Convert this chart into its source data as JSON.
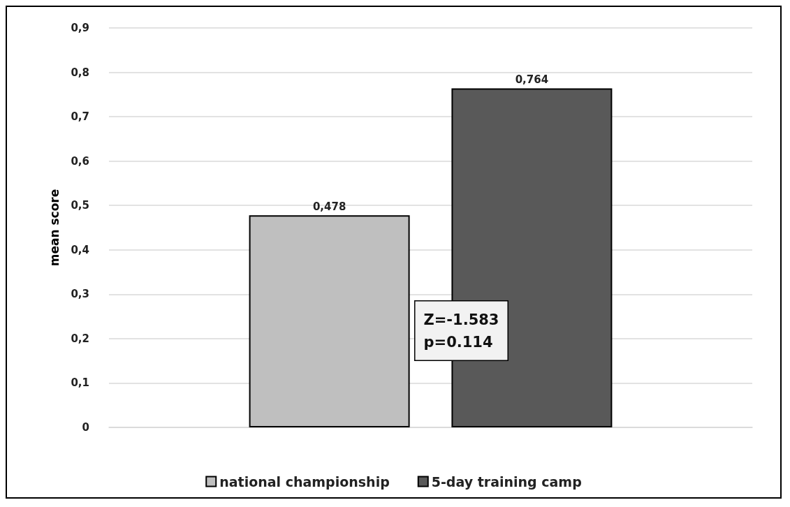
{
  "chart_data": {
    "type": "bar",
    "ylabel": "mean score",
    "categories": [
      null
    ],
    "series": [
      {
        "name": "national championship",
        "color": "#bfbfbf",
        "values": [
          0.478
        ],
        "value_labels": [
          "0,478"
        ]
      },
      {
        "name": "5-day training camp",
        "color": "#595959",
        "values": [
          0.764
        ],
        "value_labels": [
          "0,764"
        ]
      }
    ],
    "ylim": [
      0,
      0.9
    ],
    "yticks": [
      {
        "value": 0,
        "label": "0"
      },
      {
        "value": 0.1,
        "label": "0,1"
      },
      {
        "value": 0.2,
        "label": "0,2"
      },
      {
        "value": 0.3,
        "label": "0,3"
      },
      {
        "value": 0.4,
        "label": "0,4"
      },
      {
        "value": 0.5,
        "label": "0,5"
      },
      {
        "value": 0.6,
        "label": "0,6"
      },
      {
        "value": 0.7,
        "label": "0,7"
      },
      {
        "value": 0.8,
        "label": "0,8"
      },
      {
        "value": 0.9,
        "label": "0,9"
      }
    ],
    "grid": "y",
    "legend": "bottom",
    "annotations": [
      "Z=-1.583\np=0.114"
    ]
  }
}
